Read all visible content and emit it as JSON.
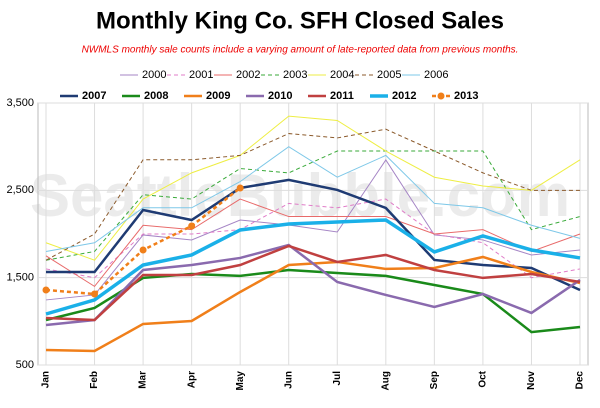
{
  "chart_data": {
    "type": "line",
    "title": "Monthly King Co. SFH Closed Sales",
    "subtitle": "NWMLS monthly sale counts include a varying amount of late-reported  data from previous months.",
    "watermark": "SeattleBubble.com",
    "categories": [
      "Jan",
      "Feb",
      "Mar",
      "Apr",
      "May",
      "Jun",
      "Jul",
      "Aug",
      "Sep",
      "Oct",
      "Nov",
      "Dec"
    ],
    "ylim": [
      500,
      3500
    ],
    "yticks": [
      {
        "value": 500,
        "label": "500"
      },
      {
        "value": 1500,
        "label": "1,500"
      },
      {
        "value": 2500,
        "label": "2,500"
      },
      {
        "value": 3500,
        "label": "3,500"
      }
    ],
    "grid": true,
    "series": [
      {
        "name": "2000",
        "color": "#a585c5",
        "dashed": false,
        "values": [
          1245,
          1302,
          1989,
          1932,
          2160,
          2103,
          2023,
          2848,
          1989,
          1932,
          1760,
          1817
        ]
      },
      {
        "name": "2001",
        "color": "#e07cc8",
        "dashed": true,
        "values": [
          1600,
          1500,
          2000,
          2000,
          2050,
          2350,
          2300,
          2400,
          2000,
          1900,
          1500,
          1600
        ]
      },
      {
        "name": "2002",
        "color": "#e86a6a",
        "dashed": false,
        "values": [
          1750,
          1400,
          2100,
          2050,
          2400,
          2200,
          2200,
          2200,
          2000,
          2050,
          1800,
          2000
        ]
      },
      {
        "name": "2003",
        "color": "#3aaa3a",
        "dashed": true,
        "values": [
          1700,
          1800,
          2450,
          2400,
          2750,
          2700,
          2950,
          2950,
          2950,
          2950,
          2050,
          2200
        ]
      },
      {
        "name": "2004",
        "color": "#eeee44",
        "dashed": false,
        "values": [
          1900,
          1700,
          2400,
          2700,
          2900,
          3350,
          3300,
          2950,
          2650,
          2550,
          2500,
          2850
        ]
      },
      {
        "name": "2005",
        "color": "#8b5a2b",
        "dashed": true,
        "values": [
          1700,
          2000,
          2850,
          2850,
          2900,
          3150,
          3100,
          3200,
          2950,
          2700,
          2500,
          2500
        ]
      },
      {
        "name": "2006",
        "color": "#7ec8e8",
        "dashed": false,
        "values": [
          1800,
          1900,
          2300,
          2300,
          2600,
          3000,
          2650,
          2900,
          2350,
          2300,
          2100,
          1950
        ]
      },
      {
        "name": "2007",
        "color": "#1f3b73",
        "dashed": false,
        "values": [
          1565,
          1565,
          2275,
          2160,
          2527,
          2619,
          2505,
          2298,
          1703,
          1645,
          1611,
          1359
        ]
      },
      {
        "name": "2008",
        "color": "#1a8a1a",
        "dashed": false,
        "values": [
          1015,
          1153,
          1497,
          1542,
          1520,
          1588,
          1554,
          1520,
          1416,
          1313,
          877,
          935
        ]
      },
      {
        "name": "2009",
        "color": "#f07f1a",
        "dashed": false,
        "values": [
          672,
          660,
          970,
          1004,
          1336,
          1645,
          1680,
          1600,
          1611,
          1737,
          1565,
          1439
        ]
      },
      {
        "name": "2010",
        "color": "#8a6aae",
        "dashed": false,
        "values": [
          958,
          1015,
          1588,
          1645,
          1726,
          1874,
          1451,
          1302,
          1164,
          1313,
          1096,
          1474
        ]
      },
      {
        "name": "2011",
        "color": "#c04040",
        "dashed": false,
        "values": [
          1038,
          1015,
          1531,
          1531,
          1645,
          1863,
          1680,
          1760,
          1588,
          1497,
          1542,
          1451
        ]
      },
      {
        "name": "2012",
        "color": "#1ab0e8",
        "dashed": false,
        "values": [
          1084,
          1245,
          1645,
          1760,
          2046,
          2115,
          2138,
          2160,
          1795,
          1978,
          1817,
          1726
        ]
      },
      {
        "name": "2013",
        "color": "#f07f1a",
        "dashed": true,
        "markers": true,
        "values": [
          1359,
          1313,
          1817,
          2092,
          2527,
          null,
          null,
          null,
          null,
          null,
          null,
          null
        ]
      }
    ]
  }
}
